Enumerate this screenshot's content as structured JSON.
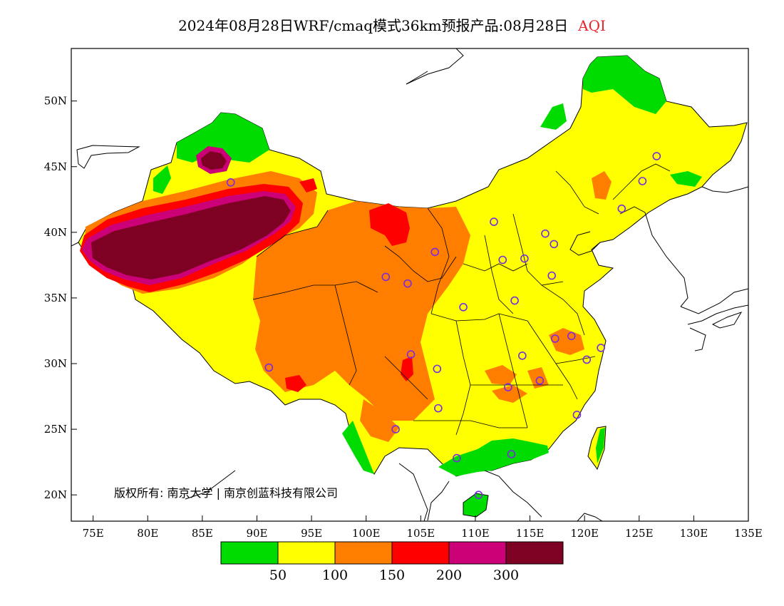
{
  "title": {
    "text": "2024年08月28日WRF/cmaq模式36km预报产品:08月28日",
    "variable": "AQI",
    "variable_color": "#e8252a"
  },
  "map": {
    "lon_range": [
      73,
      135
    ],
    "lat_range": [
      18,
      54
    ],
    "lat_ticks": [
      {
        "lat": 50,
        "label": "50N"
      },
      {
        "lat": 45,
        "label": "45N"
      },
      {
        "lat": 40,
        "label": "40N"
      },
      {
        "lat": 35,
        "label": "35N"
      },
      {
        "lat": 30,
        "label": "30N"
      },
      {
        "lat": 25,
        "label": "25N"
      },
      {
        "lat": 20,
        "label": "20N"
      }
    ],
    "lon_ticks": [
      {
        "lon": 75,
        "label": "75E"
      },
      {
        "lon": 80,
        "label": "80E"
      },
      {
        "lon": 85,
        "label": "85E"
      },
      {
        "lon": 90,
        "label": "90E"
      },
      {
        "lon": 95,
        "label": "95E"
      },
      {
        "lon": 100,
        "label": "100E"
      },
      {
        "lon": 105,
        "label": "105E"
      },
      {
        "lon": 110,
        "label": "110E"
      },
      {
        "lon": 115,
        "label": "115E"
      },
      {
        "lon": 120,
        "label": "120E"
      },
      {
        "lon": 125,
        "label": "125E"
      },
      {
        "lon": 130,
        "label": "130E"
      },
      {
        "lon": 135,
        "label": "135E"
      }
    ],
    "copyright": "版权所有: 南京大学 | 南京创蓝科技有限公司",
    "city_marker_color": "#7a2be0",
    "city_markers": [
      [
        87.6,
        43.8
      ],
      [
        91.1,
        29.7
      ],
      [
        101.8,
        36.6
      ],
      [
        103.8,
        36.1
      ],
      [
        106.3,
        38.5
      ],
      [
        104.1,
        30.7
      ],
      [
        106.6,
        26.6
      ],
      [
        102.7,
        25.0
      ],
      [
        106.5,
        29.6
      ],
      [
        108.9,
        34.3
      ],
      [
        111.7,
        40.8
      ],
      [
        112.5,
        37.9
      ],
      [
        114.5,
        38.0
      ],
      [
        116.4,
        39.9
      ],
      [
        117.2,
        39.1
      ],
      [
        117.0,
        36.7
      ],
      [
        113.6,
        34.8
      ],
      [
        114.3,
        30.6
      ],
      [
        113.0,
        28.2
      ],
      [
        115.9,
        28.7
      ],
      [
        117.3,
        31.9
      ],
      [
        118.8,
        32.1
      ],
      [
        120.2,
        30.3
      ],
      [
        121.5,
        31.2
      ],
      [
        119.3,
        26.1
      ],
      [
        113.3,
        23.1
      ],
      [
        108.3,
        22.8
      ],
      [
        110.3,
        20.0
      ],
      [
        123.4,
        41.8
      ],
      [
        125.3,
        43.9
      ],
      [
        126.6,
        45.8
      ]
    ]
  },
  "legend": {
    "bins": [
      {
        "color": "#00dc00"
      },
      {
        "color": "#ffff00"
      },
      {
        "color": "#ff7e00"
      },
      {
        "color": "#ff0000"
      },
      {
        "color": "#cc0077"
      },
      {
        "color": "#7e0023"
      }
    ],
    "labels": [
      "50",
      "100",
      "150",
      "200",
      "300"
    ]
  }
}
